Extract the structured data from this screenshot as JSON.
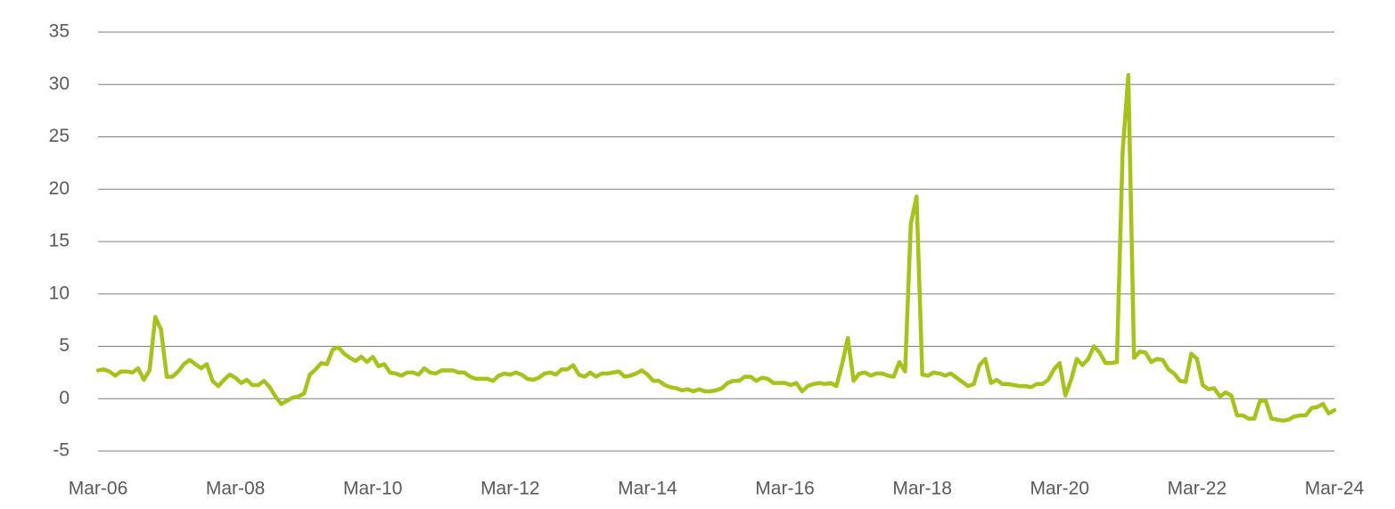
{
  "chart_data": {
    "type": "line",
    "categories": [
      "Mar-06",
      null,
      null,
      null,
      null,
      null,
      null,
      null,
      null,
      null,
      null,
      null,
      null,
      null,
      null,
      null,
      null,
      null,
      null,
      null,
      null,
      null,
      null,
      null,
      "Mar-08",
      null,
      null,
      null,
      null,
      null,
      null,
      null,
      null,
      null,
      null,
      null,
      null,
      null,
      null,
      null,
      null,
      null,
      null,
      null,
      null,
      null,
      null,
      null,
      "Mar-10",
      null,
      null,
      null,
      null,
      null,
      null,
      null,
      null,
      null,
      null,
      null,
      null,
      null,
      null,
      null,
      null,
      null,
      null,
      null,
      null,
      null,
      null,
      null,
      "Mar-12",
      null,
      null,
      null,
      null,
      null,
      null,
      null,
      null,
      null,
      null,
      null,
      null,
      null,
      null,
      null,
      null,
      null,
      null,
      null,
      null,
      null,
      null,
      null,
      "Mar-14",
      null,
      null,
      null,
      null,
      null,
      null,
      null,
      null,
      null,
      null,
      null,
      null,
      null,
      null,
      null,
      null,
      null,
      null,
      null,
      null,
      null,
      null,
      null,
      "Mar-16",
      null,
      null,
      null,
      null,
      null,
      null,
      null,
      null,
      null,
      null,
      null,
      null,
      null,
      null,
      null,
      null,
      null,
      null,
      null,
      null,
      null,
      null,
      null,
      "Mar-18",
      null,
      null,
      null,
      null,
      null,
      null,
      null,
      null,
      null,
      null,
      null,
      null,
      null,
      null,
      null,
      null,
      null,
      null,
      null,
      null,
      null,
      null,
      null,
      "Mar-20",
      null,
      null,
      null,
      null,
      null,
      null,
      null,
      null,
      null,
      null,
      null,
      null,
      null,
      null,
      null,
      null,
      null,
      null,
      null,
      null,
      null,
      null,
      null,
      "Mar-22",
      null,
      null,
      null,
      null,
      null,
      null,
      null,
      null,
      null,
      null,
      null,
      null,
      null,
      null,
      null,
      null,
      null,
      null,
      null,
      null,
      null,
      null,
      null,
      "Mar-24"
    ],
    "series": [
      {
        "color": "#a5c31b",
        "values": [
          2.7,
          2.8,
          2.6,
          2.2,
          2.6,
          2.6,
          2.5,
          2.9,
          1.8,
          2.7,
          7.8,
          6.6,
          2.1,
          2.1,
          2.6,
          3.3,
          3.7,
          3.3,
          2.9,
          3.3,
          1.7,
          1.2,
          1.8,
          2.3,
          2.0,
          1.5,
          1.8,
          1.3,
          1.3,
          1.7,
          1.1,
          0.2,
          -0.5,
          -0.2,
          0.1,
          0.2,
          0.5,
          2.3,
          2.8,
          3.4,
          3.3,
          4.7,
          4.9,
          4.3,
          3.9,
          3.6,
          4.0,
          3.5,
          4.0,
          3.1,
          3.3,
          2.5,
          2.4,
          2.2,
          2.5,
          2.5,
          2.3,
          2.9,
          2.5,
          2.4,
          2.7,
          2.7,
          2.7,
          2.5,
          2.5,
          2.1,
          1.9,
          1.9,
          1.9,
          1.7,
          2.2,
          2.4,
          2.3,
          2.5,
          2.3,
          1.9,
          1.8,
          2.0,
          2.4,
          2.5,
          2.3,
          2.8,
          2.8,
          3.2,
          2.3,
          2.1,
          2.5,
          2.1,
          2.4,
          2.4,
          2.5,
          2.6,
          2.1,
          2.2,
          2.4,
          2.7,
          2.3,
          1.7,
          1.7,
          1.3,
          1.1,
          1.0,
          0.8,
          0.9,
          0.7,
          0.9,
          0.7,
          0.7,
          0.8,
          1.0,
          1.5,
          1.7,
          1.7,
          2.1,
          2.1,
          1.7,
          2.0,
          1.9,
          1.5,
          1.5,
          1.5,
          1.3,
          1.5,
          0.7,
          1.2,
          1.4,
          1.5,
          1.4,
          1.5,
          1.2,
          3.3,
          5.8,
          1.7,
          2.4,
          2.5,
          2.2,
          2.4,
          2.4,
          2.2,
          2.1,
          3.5,
          2.6,
          16.7,
          19.3,
          2.3,
          2.2,
          2.5,
          2.4,
          2.2,
          2.4,
          2.0,
          1.6,
          1.2,
          1.4,
          3.2,
          3.8,
          1.5,
          1.8,
          1.4,
          1.4,
          1.3,
          1.2,
          1.2,
          1.1,
          1.4,
          1.4,
          1.8,
          2.8,
          3.4,
          0.3,
          1.8,
          3.8,
          3.2,
          3.8,
          5.0,
          4.4,
          3.4,
          3.4,
          3.5,
          23.5,
          30.9,
          3.9,
          4.5,
          4.4,
          3.5,
          3.8,
          3.7,
          2.8,
          2.4,
          1.7,
          1.6,
          4.3,
          3.8,
          1.3,
          0.9,
          1.0,
          0.2,
          0.6,
          0.3,
          -1.6,
          -1.6,
          -1.9,
          -1.9,
          -0.2,
          -0.2,
          -1.9,
          -2.0,
          -2.1,
          -2.0,
          -1.7,
          -1.6,
          -1.6,
          -0.9,
          -0.8,
          -0.5,
          -1.4,
          -1.1
        ]
      }
    ],
    "ylim": [
      -5,
      35
    ],
    "yticks": [
      -5,
      0,
      5,
      10,
      15,
      20,
      25,
      30,
      35
    ],
    "grid": true
  }
}
